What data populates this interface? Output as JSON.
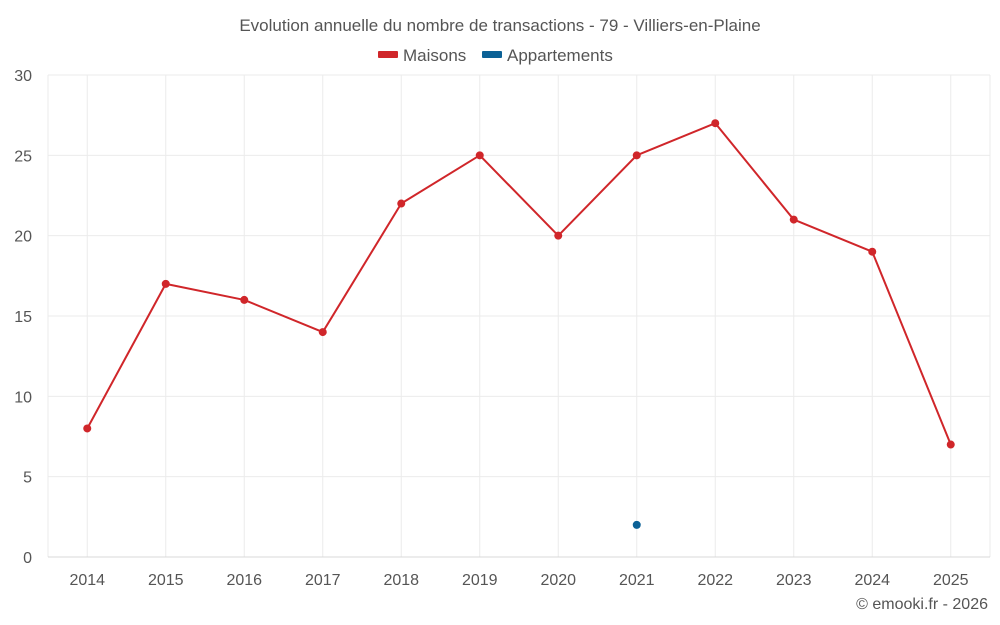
{
  "chart_data": {
    "type": "line",
    "title": "Evolution annuelle du nombre de transactions - 79 - Villiers-en-Plaine",
    "categories": [
      "2014",
      "2015",
      "2016",
      "2017",
      "2018",
      "2019",
      "2020",
      "2021",
      "2022",
      "2023",
      "2024",
      "2025"
    ],
    "series": [
      {
        "name": "Maisons",
        "color": "#d0262a",
        "values": [
          8,
          17,
          16,
          14,
          22,
          25,
          20,
          25,
          27,
          21,
          19,
          7
        ]
      },
      {
        "name": "Appartements",
        "color": "#0b6196",
        "values": [
          null,
          null,
          null,
          null,
          null,
          null,
          null,
          2,
          null,
          null,
          null,
          null
        ]
      }
    ],
    "ylim": [
      0,
      30
    ],
    "yticks": [
      0,
      5,
      10,
      15,
      20,
      25,
      30
    ],
    "xlabel": "",
    "ylabel": "",
    "grid": true,
    "legend": "top-center"
  },
  "credit": "© emooki.fr - 2026"
}
